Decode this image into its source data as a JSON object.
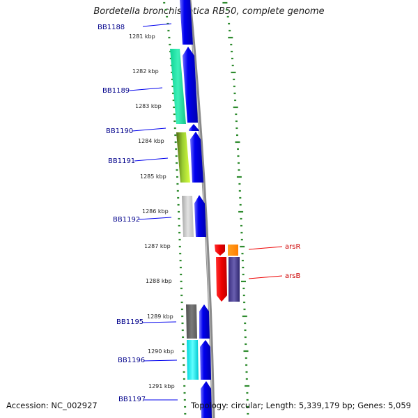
{
  "title": "Bordetella bronchiseptica RB50, complete genome",
  "footer": {
    "accession": "Accession: NC_002927",
    "summary": "Topology: circular; Length: 5,339,179 bp; Genes: 5,059"
  },
  "colors": {
    "backbone": "#8a8a8a",
    "ticks": "#2e8b2e",
    "strand_forward": "#0000ee",
    "gene_label": "#00008b",
    "highlight_label": "#cc0000"
  },
  "scale_labels": [
    "1281 kbp",
    "1282 kbp",
    "1283 kbp",
    "1284 kbp",
    "1285 kbp",
    "1286 kbp",
    "1287 kbp",
    "1288 kbp",
    "1289 kbp",
    "1290 kbp",
    "1291 kbp"
  ],
  "genes": [
    {
      "label": "BB1188",
      "side": "left",
      "color": "#0000ee"
    },
    {
      "label": "BB1189",
      "side": "left",
      "color": "#1de9a4"
    },
    {
      "label": "BB1190",
      "side": "left",
      "color": "#0000ee"
    },
    {
      "label": "BB1191",
      "side": "left",
      "color": "#8fbc2a"
    },
    {
      "label": "BB1192",
      "side": "left",
      "color": "#c8c8c8"
    },
    {
      "label": "arsR",
      "side": "right",
      "color": "#ff8c00"
    },
    {
      "label": "arsB",
      "side": "right",
      "color": "#483d8b"
    },
    {
      "label": "BB1195",
      "side": "left",
      "color": "#696969"
    },
    {
      "label": "BB1196",
      "side": "left",
      "color": "#00e5ee"
    },
    {
      "label": "BB1197",
      "side": "left",
      "color": "#0000ee"
    }
  ]
}
